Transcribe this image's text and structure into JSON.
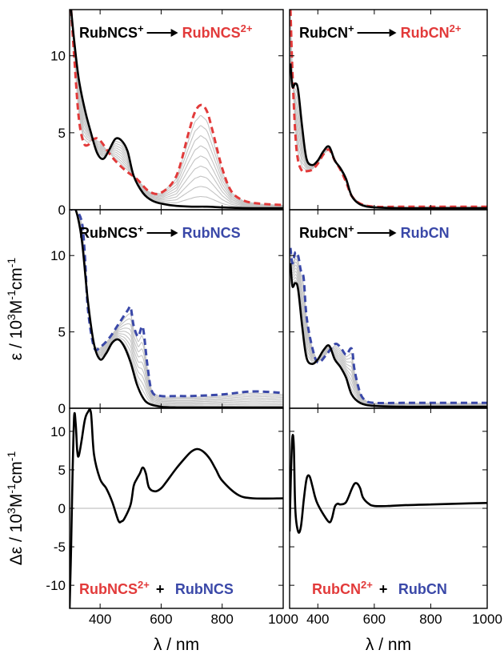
{
  "chart_data": [
    {
      "type": "line",
      "panel": "top-left",
      "xlim": [
        300,
        1000
      ],
      "ylim": [
        0,
        13
      ],
      "yticks": [
        0,
        5,
        10
      ],
      "legend": {
        "start": "RubNCS",
        "start_sup": "+",
        "end": "RubNCS",
        "end_sup": "2+",
        "end_color": "#e23a3a",
        "arrow_color": "#000000"
      },
      "series": [
        {
          "style": "solid-black",
          "x": [
            305,
            315,
            330,
            350,
            370,
            390,
            410,
            430,
            450,
            470,
            490,
            510,
            540,
            570,
            600,
            650,
            700,
            750,
            800,
            850,
            900,
            950,
            1000
          ],
          "y": [
            13,
            11,
            8.5,
            6.5,
            5,
            3.7,
            3.3,
            3.9,
            4.6,
            4.5,
            3.8,
            2.2,
            1.1,
            0.6,
            0.4,
            0.25,
            0.2,
            0.2,
            0.15,
            0.12,
            0.1,
            0.1,
            0.1
          ]
        },
        {
          "style": "dashed",
          "color": "#e23a3a",
          "x": [
            305,
            315,
            330,
            345,
            360,
            380,
            400,
            440,
            480,
            520,
            560,
            600,
            650,
            690,
            710,
            730,
            750,
            770,
            800,
            830,
            870,
            920,
            1000
          ],
          "y": [
            13,
            10,
            6,
            4.4,
            4.2,
            4.6,
            4.5,
            3.4,
            2.6,
            2.0,
            1.2,
            1.1,
            2.2,
            5.0,
            6.3,
            6.8,
            6.4,
            5.0,
            2.7,
            1.2,
            0.6,
            0.4,
            0.3
          ]
        }
      ]
    },
    {
      "type": "line",
      "panel": "top-right",
      "xlim": [
        300,
        1000
      ],
      "ylim": [
        0,
        13
      ],
      "yticks": [
        0,
        5,
        10
      ],
      "legend": {
        "start": "RubCN",
        "start_sup": "+",
        "end": "RubCN",
        "end_sup": "2+",
        "end_color": "#e23a3a",
        "arrow_color": "#000000"
      },
      "series": [
        {
          "style": "solid-black",
          "x": [
            303,
            310,
            320,
            330,
            345,
            360,
            380,
            400,
            420,
            440,
            460,
            480,
            500,
            520,
            550,
            600,
            700,
            800,
            1000
          ],
          "y": [
            9.5,
            8.0,
            8.2,
            7.8,
            5.3,
            3.3,
            2.9,
            3.2,
            3.8,
            4.1,
            3.2,
            2.7,
            2.0,
            0.9,
            0.35,
            0.15,
            0.1,
            0.1,
            0.1
          ]
        },
        {
          "style": "dashed",
          "color": "#e23a3a",
          "x": [
            303,
            310,
            320,
            330,
            345,
            360,
            380,
            400,
            420,
            440,
            460,
            480,
            500,
            520,
            550,
            600,
            700,
            800,
            1000
          ],
          "y": [
            13,
            9,
            5,
            3.2,
            2.5,
            2.5,
            2.6,
            3.0,
            3.6,
            3.9,
            3.2,
            2.6,
            1.8,
            0.9,
            0.4,
            0.2,
            0.2,
            0.2,
            0.2
          ]
        }
      ]
    },
    {
      "type": "line",
      "panel": "middle-left",
      "xlim": [
        300,
        1000
      ],
      "ylim": [
        0,
        13
      ],
      "yticks": [
        0,
        5,
        10
      ],
      "ylabel_main": "ε / 10",
      "ylabel_sup1": "3",
      "ylabel_mid": "M",
      "ylabel_sup2": "-1",
      "ylabel_tail": "cm",
      "ylabel_sup3": "-1",
      "legend": {
        "start": "RubNCS",
        "start_sup": "+",
        "end": "RubNCS",
        "end_sup": "",
        "end_color": "#3a48a8",
        "arrow_color": "#000000"
      },
      "series": [
        {
          "style": "solid-black",
          "x": [
            305,
            320,
            340,
            360,
            380,
            400,
            420,
            440,
            460,
            480,
            500,
            520,
            540,
            560,
            600,
            650,
            700,
            800,
            1000
          ],
          "y": [
            13,
            13,
            11,
            7,
            4.2,
            3.2,
            3.6,
            4.3,
            4.5,
            4.0,
            3.0,
            1.6,
            0.7,
            0.3,
            0.1,
            0.05,
            0.05,
            0.05,
            0.05
          ]
        },
        {
          "style": "dashed",
          "color": "#3a48a8",
          "x": [
            305,
            320,
            340,
            350,
            360,
            380,
            400,
            430,
            460,
            490,
            500,
            510,
            525,
            540,
            555,
            570,
            600,
            650,
            700,
            800,
            900,
            1000
          ],
          "y": [
            13,
            13,
            12.2,
            10,
            6.5,
            4.0,
            4.0,
            4.6,
            5.5,
            6.4,
            6.6,
            5.4,
            4.7,
            5.3,
            2.8,
            1.1,
            0.8,
            0.8,
            0.8,
            0.9,
            1.1,
            1.0
          ]
        }
      ]
    },
    {
      "type": "line",
      "panel": "middle-right",
      "xlim": [
        300,
        1000
      ],
      "ylim": [
        0,
        13
      ],
      "yticks": [
        0,
        5,
        10
      ],
      "legend": {
        "start": "RubCN",
        "start_sup": "+",
        "end": "RubCN",
        "end_sup": "",
        "end_color": "#3a48a8",
        "arrow_color": "#000000"
      },
      "series": [
        {
          "style": "solid-black",
          "x": [
            303,
            310,
            320,
            330,
            345,
            360,
            380,
            400,
            420,
            440,
            460,
            480,
            500,
            520,
            550,
            600,
            700,
            800,
            1000
          ],
          "y": [
            9.5,
            8.0,
            8.2,
            7.8,
            5.3,
            3.3,
            2.9,
            3.2,
            3.8,
            4.1,
            3.2,
            2.7,
            2.0,
            0.9,
            0.35,
            0.15,
            0.1,
            0.1,
            0.1
          ]
        },
        {
          "style": "dashed",
          "color": "#3a48a8",
          "x": [
            303,
            310,
            320,
            330,
            340,
            350,
            360,
            380,
            400,
            430,
            460,
            480,
            500,
            520,
            530,
            550,
            570,
            600,
            700,
            800,
            1000
          ],
          "y": [
            10.5,
            9.5,
            10.2,
            10,
            9.0,
            8.5,
            6.0,
            4.0,
            3.0,
            3.5,
            4.2,
            4.0,
            3.5,
            3.9,
            2.5,
            1.0,
            0.5,
            0.35,
            0.35,
            0.35,
            0.35
          ]
        }
      ]
    },
    {
      "type": "line",
      "panel": "bottom-left",
      "xlim": [
        300,
        1000
      ],
      "ylim": [
        -13,
        13
      ],
      "yticks": [
        -10,
        -5,
        0,
        5,
        10
      ],
      "xticks": [
        400,
        600,
        800,
        1000
      ],
      "xlabel": "λ / nm",
      "ylabel_main": "Δε / 10",
      "ylabel_sup1": "3",
      "ylabel_mid": "M",
      "ylabel_sup2": "-1",
      "ylabel_tail": "cm",
      "ylabel_sup3": "-1",
      "legend": {
        "a": "RubNCS",
        "a_sup": "2+",
        "a_color": "#e23a3a",
        "plus": "+",
        "b": "RubNCS",
        "b_color": "#3a48a8"
      },
      "series": [
        {
          "style": "solid-black",
          "x": [
            300,
            305,
            310,
            315,
            320,
            325,
            330,
            340,
            350,
            360,
            370,
            380,
            400,
            420,
            440,
            460,
            470,
            480,
            500,
            510,
            520,
            530,
            540,
            550,
            560,
            580,
            600,
            620,
            650,
            680,
            700,
            720,
            740,
            760,
            780,
            800,
            850,
            900,
            1000
          ],
          "y": [
            -13,
            -5,
            5,
            12.0,
            11.0,
            7.5,
            6.8,
            9,
            11.5,
            12.5,
            12.4,
            7,
            3.8,
            2.6,
            0.8,
            -1.6,
            -1.7,
            -1.3,
            0.5,
            2.9,
            3.8,
            4.5,
            5.3,
            4.5,
            2.7,
            2.2,
            2.6,
            3.6,
            5.2,
            6.6,
            7.4,
            7.7,
            7.3,
            6.4,
            5.0,
            3.6,
            1.8,
            1.3,
            1.3
          ]
        }
      ]
    },
    {
      "type": "line",
      "panel": "bottom-right",
      "xlim": [
        300,
        1000
      ],
      "ylim": [
        -13,
        13
      ],
      "xticks": [
        400,
        600,
        800,
        1000
      ],
      "xlabel": "λ / nm",
      "legend": {
        "a": "RubCN",
        "a_sup": "2+",
        "a_color": "#e23a3a",
        "plus": "+",
        "b": "RubCN",
        "b_color": "#3a48a8"
      },
      "series": [
        {
          "style": "solid-black",
          "x": [
            300,
            305,
            310,
            315,
            320,
            330,
            340,
            350,
            360,
            370,
            380,
            390,
            400,
            420,
            440,
            450,
            460,
            470,
            480,
            500,
            520,
            530,
            540,
            550,
            560,
            580,
            600,
            650,
            700,
            800,
            900,
            1000
          ],
          "y": [
            -3,
            5,
            9.3,
            8,
            0,
            -3,
            -2.4,
            1,
            3.8,
            4.2,
            3.0,
            1.5,
            0.5,
            -0.8,
            -1.8,
            -1.3,
            0.2,
            0.6,
            0.5,
            0.8,
            2.5,
            3.2,
            3.2,
            2.6,
            1.4,
            0.6,
            0.3,
            0.3,
            0.4,
            0.5,
            0.6,
            0.7
          ]
        }
      ]
    }
  ]
}
